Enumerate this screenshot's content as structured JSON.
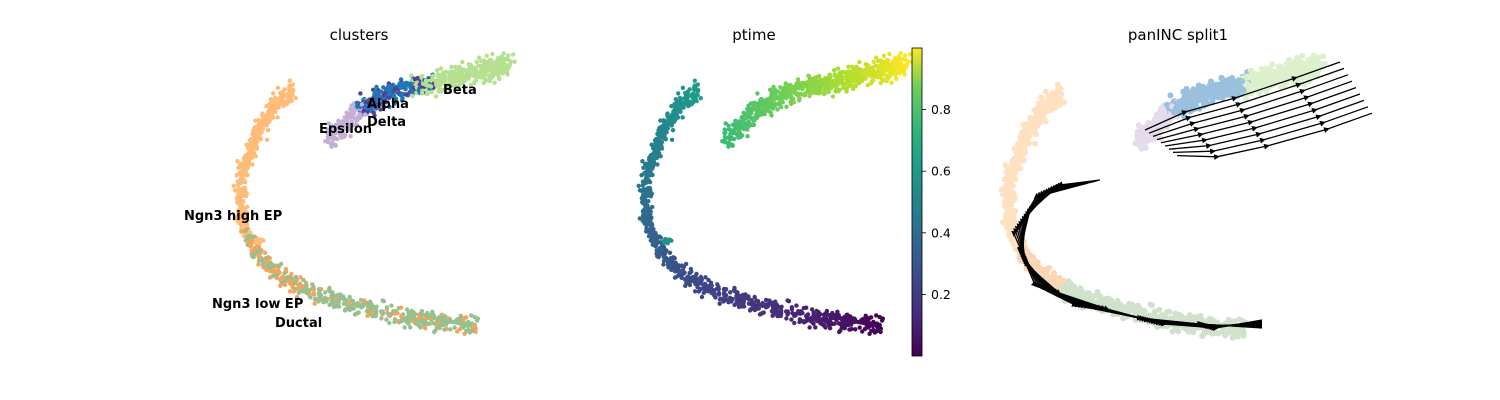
{
  "chart_data": [
    {
      "type": "scatter",
      "title": "clusters",
      "clusters": [
        {
          "name": "Ngn3 high EP",
          "color": "#ffbb78"
        },
        {
          "name": "Ngn3 low EP",
          "color": "#f7a35c"
        },
        {
          "name": "Ductal",
          "color": "#98c08f"
        },
        {
          "name": "Alpha",
          "color": "#1f77b4"
        },
        {
          "name": "Beta",
          "color": "#b5e08f"
        },
        {
          "name": "Delta",
          "color": "#5b3a9a"
        },
        {
          "name": "Epsilon",
          "color": "#c5b0d5"
        }
      ],
      "labels": [
        {
          "text": "Alpha"
        },
        {
          "text": "Beta"
        },
        {
          "text": "Delta"
        },
        {
          "text": "Epsilon"
        },
        {
          "text": "Ngn3 high EP"
        },
        {
          "text": "Ngn3 low EP"
        },
        {
          "text": "Ductal"
        }
      ]
    },
    {
      "type": "scatter",
      "title": "ptime",
      "colormap": "viridis",
      "colorbar": {
        "ticks": [
          "0.2",
          "0.4",
          "0.6",
          "0.8"
        ],
        "ticks_values": [
          0.2,
          0.4,
          0.6,
          0.8
        ],
        "vmin": 0.0,
        "vmax": 1.0
      }
    },
    {
      "type": "scatter",
      "title": "panINC split1",
      "overlay": "velocity streamlines with arrowheads"
    }
  ]
}
